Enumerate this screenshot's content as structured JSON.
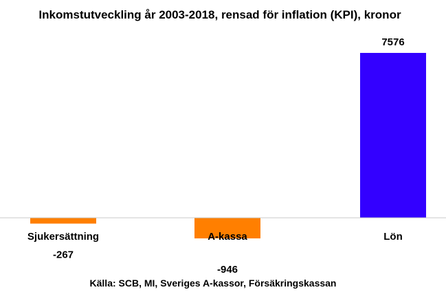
{
  "chart_data": {
    "type": "bar",
    "title": "Inkomstutveckling år 2003-2018, rensad för inflation (KPI), kronor",
    "categories": [
      "Sjukersättning",
      "A-kassa",
      "Lön"
    ],
    "values": [
      -267,
      -946,
      7576
    ],
    "value_labels": [
      "-267",
      "-946",
      "7576"
    ],
    "colors": [
      "#ff7f00",
      "#ff7f00",
      "#3300ff"
    ],
    "ylim": [
      -1000,
      8000
    ],
    "grid": false,
    "legend": "none",
    "source": "Källa: SCB, MI, Sveriges A-kassor, Försäkringskassan"
  }
}
